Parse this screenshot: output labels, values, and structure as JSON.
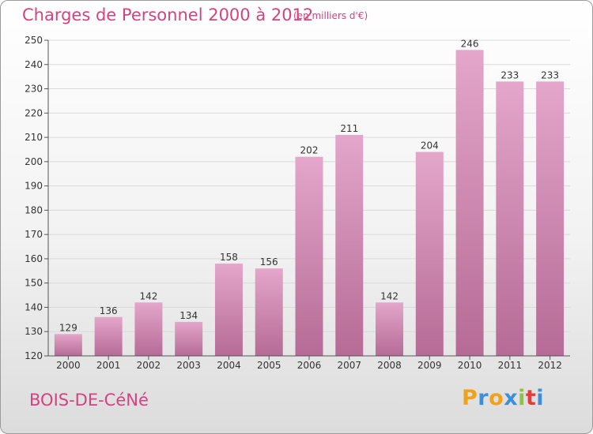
{
  "header": {
    "title": "Charges de Personnel 2000 à 2012",
    "unit": "(en milliers d'€)"
  },
  "footer": {
    "city": "BOIS-DE-CéNé",
    "logo": "Proxiti"
  },
  "colors": {
    "title": "#d4427f",
    "bar_light": "#e4a6cb",
    "bar_dark": "#b56b95",
    "logo_letters": [
      "#f0a21a",
      "#3f8fd8",
      "#f0a21a",
      "#3f8fd8",
      "#8cc43f",
      "#e53b3b",
      "#3f8fd8"
    ]
  },
  "chart_data": {
    "type": "bar",
    "title": "Charges de Personnel 2000 à 2012",
    "subtitle": "(en milliers d'€)",
    "xlabel": "",
    "ylabel": "",
    "categories": [
      "2000",
      "2001",
      "2002",
      "2003",
      "2004",
      "2005",
      "2006",
      "2007",
      "2008",
      "2009",
      "2010",
      "2011",
      "2012"
    ],
    "values": [
      129,
      136,
      142,
      134,
      158,
      156,
      202,
      211,
      142,
      204,
      246,
      233,
      233
    ],
    "ylim": [
      120,
      250
    ],
    "yticks": [
      120,
      130,
      140,
      150,
      160,
      170,
      180,
      190,
      200,
      210,
      220,
      230,
      240,
      250
    ],
    "grid": true,
    "data_labels": true
  }
}
